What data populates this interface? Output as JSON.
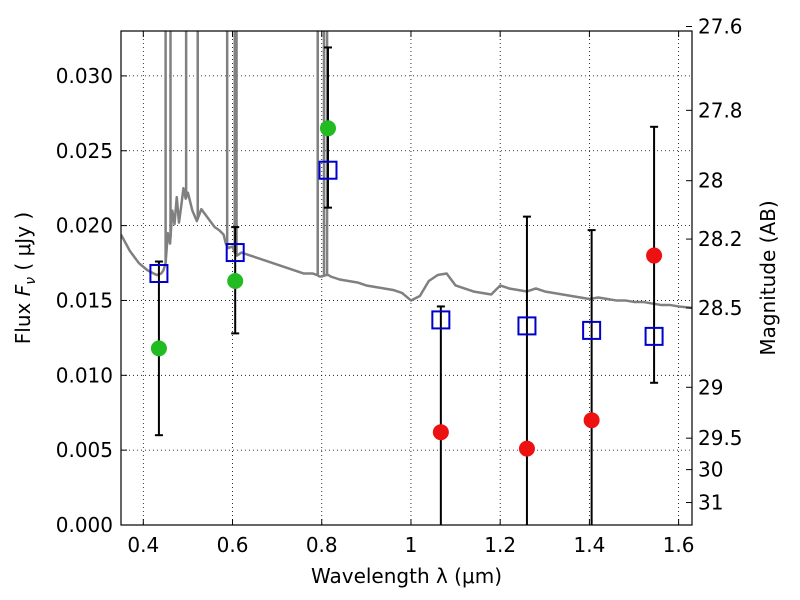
{
  "chart_data": {
    "type": "scatter",
    "xlabel": "Wavelength  λ (μm)",
    "ylabel": "Flux  F_ν  ( μJy )",
    "ylabel_parts": {
      "prefix": "Flux  ",
      "symbol": "F",
      "subscript": "ν",
      "suffix": "  ( μJy )"
    },
    "y2label": "Magnitude (AB)",
    "xlim": [
      0.35,
      1.63
    ],
    "ylim": [
      0.0,
      0.033
    ],
    "x_ticks": [
      0.4,
      0.6,
      0.8,
      1.0,
      1.2,
      1.4,
      1.6
    ],
    "x_tick_labels": [
      "0.4",
      "0.6",
      "0.8",
      "1",
      "1.2",
      "1.4",
      "1.6"
    ],
    "y_ticks": [
      0.0,
      0.005,
      0.01,
      0.015,
      0.02,
      0.025,
      0.03
    ],
    "y_tick_labels": [
      "0.000",
      "0.005",
      "0.010",
      "0.015",
      "0.020",
      "0.025",
      "0.030"
    ],
    "y2_ticks": [
      {
        "label": "27.6",
        "flux": 0.0333
      },
      {
        "label": "27.8",
        "flux": 0.0277
      },
      {
        "label": "28",
        "flux": 0.023
      },
      {
        "label": "28.2",
        "flux": 0.0191
      },
      {
        "label": "28.5",
        "flux": 0.0145
      },
      {
        "label": "29",
        "flux": 0.0092
      },
      {
        "label": "29.5",
        "flux": 0.0058
      },
      {
        "label": "30",
        "flux": 0.0037
      },
      {
        "label": "31",
        "flux": 0.0015
      }
    ],
    "grid": true,
    "colors": {
      "model": "#808080",
      "model_points": "#0000cc",
      "detections": "#22bb22",
      "nondetections": "#ee1111",
      "errorbars": "#000000"
    },
    "series": [
      {
        "kind": "model_spectrum",
        "x": [
          0.35,
          0.37,
          0.39,
          0.41,
          0.43,
          0.44,
          0.445,
          0.45,
          0.455,
          0.46,
          0.465,
          0.47,
          0.475,
          0.48,
          0.485,
          0.49,
          0.495,
          0.5,
          0.51,
          0.52,
          0.53,
          0.54,
          0.55,
          0.56,
          0.57,
          0.58,
          0.585,
          0.59,
          0.6,
          0.605,
          0.61,
          0.62,
          0.64,
          0.66,
          0.68,
          0.7,
          0.72,
          0.74,
          0.76,
          0.78,
          0.79,
          0.795,
          0.8,
          0.81,
          0.815,
          0.82,
          0.84,
          0.86,
          0.88,
          0.9,
          0.92,
          0.94,
          0.96,
          0.98,
          1.0,
          1.02,
          1.04,
          1.06,
          1.08,
          1.1,
          1.12,
          1.14,
          1.16,
          1.18,
          1.2,
          1.22,
          1.24,
          1.26,
          1.28,
          1.3,
          1.32,
          1.34,
          1.36,
          1.38,
          1.4,
          1.42,
          1.44,
          1.46,
          1.48,
          1.5,
          1.52,
          1.54,
          1.56,
          1.58,
          1.6,
          1.63
        ],
        "y": [
          0.0194,
          0.0183,
          0.0175,
          0.017,
          0.0167,
          0.0168,
          0.017,
          0.0175,
          0.0195,
          0.0188,
          0.021,
          0.0201,
          0.0219,
          0.0202,
          0.0213,
          0.0225,
          0.0218,
          0.0222,
          0.021,
          0.0203,
          0.0211,
          0.0207,
          0.0203,
          0.0199,
          0.0197,
          0.0194,
          0.0188,
          0.0185,
          0.0186,
          0.0182,
          0.018,
          0.0182,
          0.018,
          0.0178,
          0.0176,
          0.0174,
          0.0172,
          0.017,
          0.0168,
          0.0168,
          0.0167,
          0.0166,
          0.0166,
          0.0167,
          0.0167,
          0.0166,
          0.0164,
          0.0163,
          0.0162,
          0.016,
          0.0159,
          0.0158,
          0.0157,
          0.0155,
          0.015,
          0.0153,
          0.0163,
          0.0167,
          0.0168,
          0.016,
          0.0158,
          0.0156,
          0.0155,
          0.0154,
          0.016,
          0.0158,
          0.0157,
          0.0156,
          0.0158,
          0.0156,
          0.0155,
          0.0154,
          0.0153,
          0.0152,
          0.0151,
          0.0152,
          0.0151,
          0.015,
          0.015,
          0.0149,
          0.0149,
          0.0148,
          0.0147,
          0.0147,
          0.0146,
          0.0145
        ]
      },
      {
        "kind": "emission_lines",
        "lines": [
          {
            "x": 0.45,
            "peak": 0.036
          },
          {
            "x": 0.461,
            "peak": 0.036
          },
          {
            "x": 0.496,
            "peak": 0.036
          },
          {
            "x": 0.522,
            "peak": 0.036
          },
          {
            "x": 0.588,
            "peak": 0.036
          },
          {
            "x": 0.605,
            "peak": 0.036
          },
          {
            "x": 0.609,
            "peak": 0.036
          },
          {
            "x": 0.791,
            "peak": 0.036
          },
          {
            "x": 0.805,
            "peak": 0.036
          },
          {
            "x": 0.812,
            "peak": 0.036
          }
        ]
      },
      {
        "kind": "model_points",
        "x": [
          0.435,
          0.606,
          0.814,
          1.067,
          1.26,
          1.405,
          1.545
        ],
        "y": [
          0.0168,
          0.0182,
          0.0237,
          0.0137,
          0.0133,
          0.013,
          0.0126
        ]
      },
      {
        "kind": "detections",
        "x": [
          0.435,
          0.606,
          0.814
        ],
        "y": [
          0.0118,
          0.0163,
          0.0265
        ],
        "err_low": [
          0.006,
          0.0128,
          0.0212
        ],
        "err_high": [
          0.0176,
          0.0199,
          0.0319
        ]
      },
      {
        "kind": "nondetections",
        "x": [
          1.067,
          1.26,
          1.405,
          1.545
        ],
        "y": [
          0.0062,
          0.0051,
          0.007,
          0.018
        ],
        "err_low": [
          0.0,
          0.0,
          0.0,
          0.0095
        ],
        "err_high": [
          0.0146,
          0.0206,
          0.0197,
          0.0266
        ]
      }
    ]
  }
}
